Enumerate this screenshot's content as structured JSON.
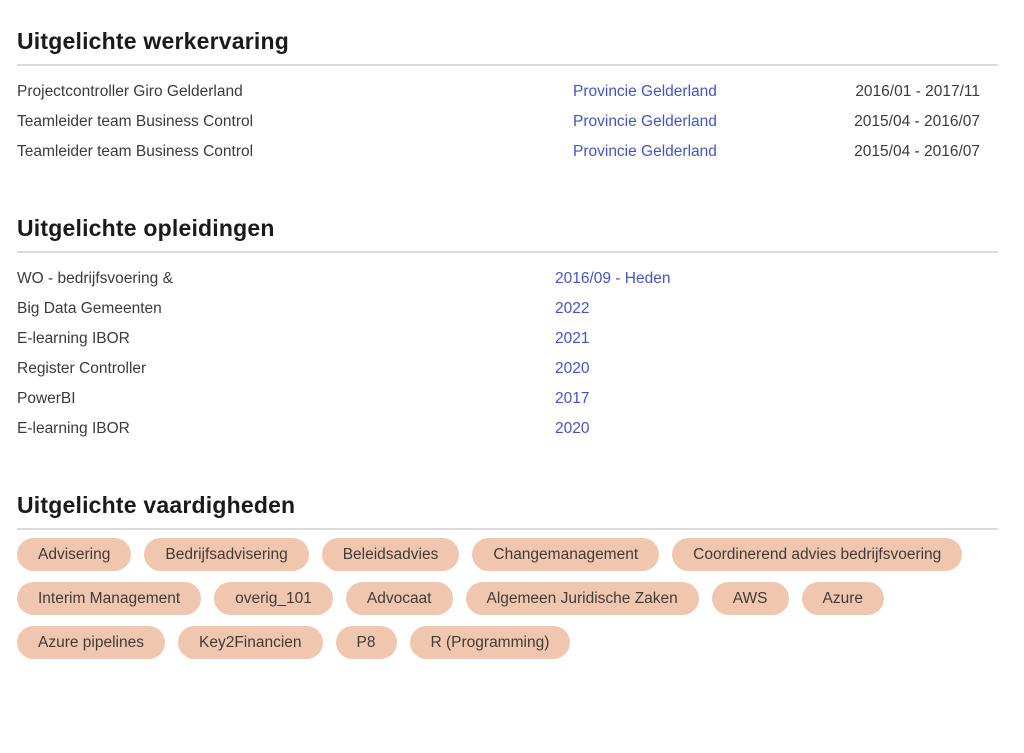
{
  "colors": {
    "background": "#ffffff",
    "heading_text": "#1a1a1a",
    "body_text": "#3b3b3b",
    "link_blue": "#4355c6",
    "rule_gray": "#dcdcdc",
    "pill_background": "#f1c6ae",
    "pill_text": "#3d3d3d"
  },
  "experience": {
    "title": "Uitgelichte werkervaring",
    "rows": [
      {
        "role": "Projectcontroller Giro Gelderland",
        "company": "Provincie Gelderland",
        "period": "2016/01 - 2017/11"
      },
      {
        "role": "Teamleider team Business Control",
        "company": "Provincie Gelderland",
        "period": "2015/04 - 2016/07"
      },
      {
        "role": "Teamleider team Business Control",
        "company": "Provincie Gelderland",
        "period": "2015/04 - 2016/07"
      }
    ]
  },
  "education": {
    "title": "Uitgelichte opleidingen",
    "rows": [
      {
        "name": "WO - bedrijfsvoering &",
        "period": "2016/09 - Heden"
      },
      {
        "name": "Big Data Gemeenten",
        "period": "2022"
      },
      {
        "name": "E-learning IBOR",
        "period": "2021"
      },
      {
        "name": "Register Controller",
        "period": "2020"
      },
      {
        "name": "PowerBI",
        "period": "2017"
      },
      {
        "name": "E-learning IBOR",
        "period": "2020"
      }
    ]
  },
  "skills": {
    "title": "Uitgelichte vaardigheden",
    "items": [
      "Advisering",
      "Bedrijfsadvisering",
      "Beleidsadvies",
      "Changemanagement",
      "Coordinerend advies bedrijfsvoering",
      "Interim Management",
      "overig_101",
      "Advocaat",
      "Algemeen Juridische Zaken",
      "AWS",
      "Azure",
      "Azure pipelines",
      "Key2Financien",
      "P8",
      "R (Programming)"
    ]
  }
}
